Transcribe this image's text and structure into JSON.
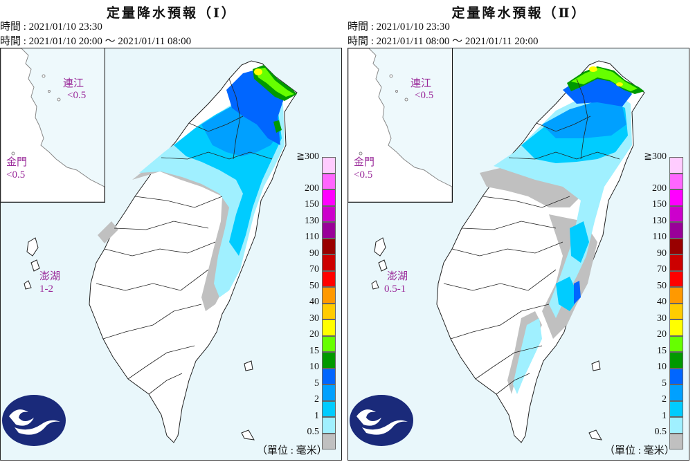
{
  "panels": [
    {
      "title": "定量降水預報（Ⅰ）",
      "issue_line": "時間 : 2021/01/10 23:30",
      "valid_line": "時間 : 2021/01/10 20:00 ～ 2021/01/11 08:00",
      "inset_labels": {
        "lienchiang_name": "連江",
        "lienchiang_value": "<0.5",
        "kinmen_name": "金門",
        "kinmen_value": "<0.5"
      },
      "penghu_name": "澎湖",
      "penghu_value": "1-2"
    },
    {
      "title": "定量降水預報（Ⅱ）",
      "issue_line": "時間 : 2021/01/10 23:30",
      "valid_line": "時間 : 2021/01/11 08:00 ～ 2021/01/11 20:00",
      "inset_labels": {
        "lienchiang_name": "連江",
        "lienchiang_value": "<0.5",
        "kinmen_name": "金門",
        "kinmen_value": "<0.5"
      },
      "penghu_name": "澎湖",
      "penghu_value": "0.5-1"
    }
  ],
  "legend": {
    "top_label": "≧300",
    "levels": [
      {
        "label": "200",
        "color": "#ff66ff"
      },
      {
        "label": "150",
        "color": "#ff00ff"
      },
      {
        "label": "130",
        "color": "#cc00cc"
      },
      {
        "label": "110",
        "color": "#990099"
      },
      {
        "label": "90",
        "color": "#990000"
      },
      {
        "label": "70",
        "color": "#cc0000"
      },
      {
        "label": "50",
        "color": "#ff0000"
      },
      {
        "label": "40",
        "color": "#ff9900"
      },
      {
        "label": "30",
        "color": "#ffcc00"
      },
      {
        "label": "20",
        "color": "#ffff00"
      },
      {
        "label": "15",
        "color": "#66ff00"
      },
      {
        "label": "10",
        "color": "#009900"
      },
      {
        "label": "5",
        "color": "#0066ff"
      },
      {
        "label": "2",
        "color": "#00a0ff"
      },
      {
        "label": "1",
        "color": "#00ccff"
      },
      {
        "label": "0.5",
        "color": "#a0f0ff"
      },
      {
        "label": "",
        "color": "#c0c0c0"
      }
    ],
    "top_color": "#ffccff"
  },
  "unit_label": "（單位 : 毫米）",
  "colors": {
    "map_bg": "#e9f7fb",
    "gray": "#c0c0c0",
    "light_cyan": "#a0f0ff",
    "cyan": "#00ccff",
    "blue": "#00a0ff",
    "dark_blue": "#0066ff",
    "green": "#009900",
    "light_green": "#66ff00",
    "yellow": "#ffff00",
    "logo": "#1a2a7a"
  }
}
